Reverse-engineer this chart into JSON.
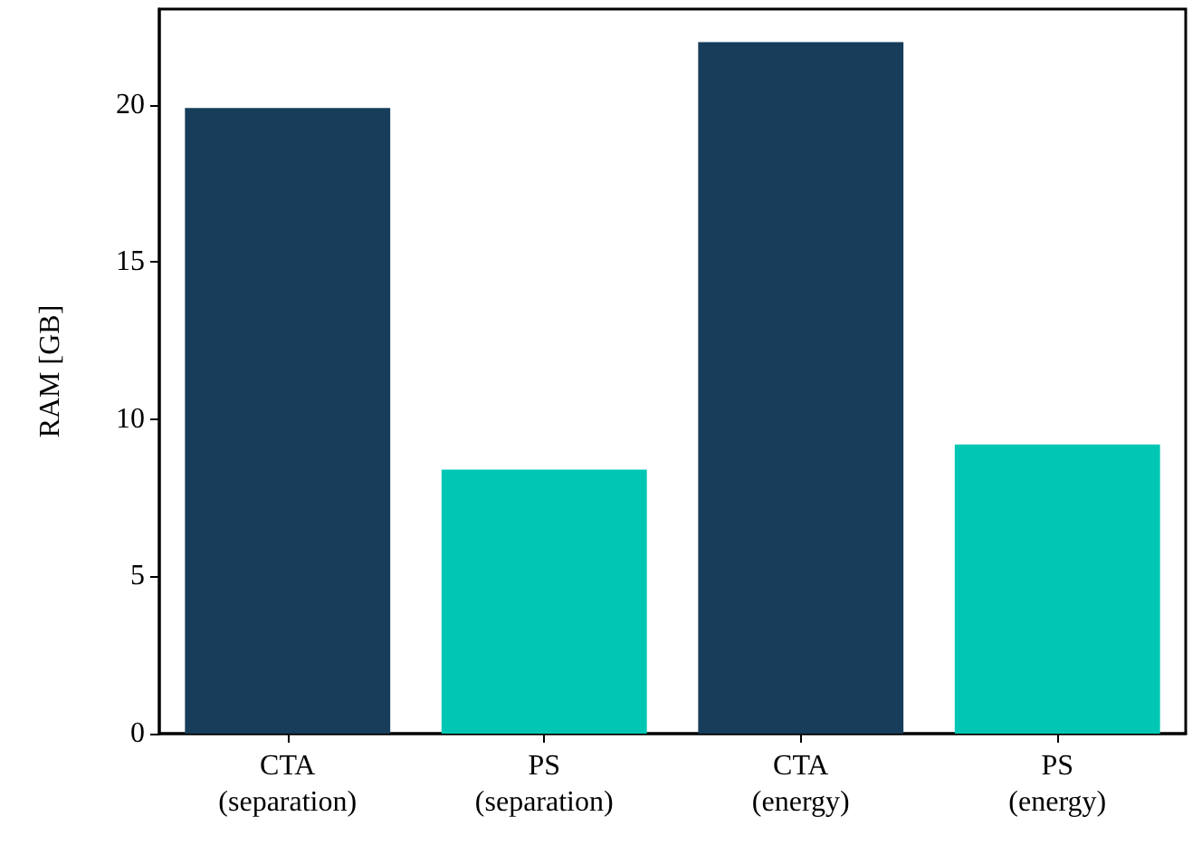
{
  "chart_data": {
    "type": "bar",
    "ylabel": "RAM [GB]",
    "categories": [
      "CTA\n(separation)",
      "PS\n(separation)",
      "CTA\n(energy)",
      "PS\n(energy)"
    ],
    "values": [
      19.9,
      8.4,
      22.0,
      9.2
    ],
    "colors": [
      "#173d5a",
      "#00c7b4",
      "#173d5a",
      "#00c7b4"
    ],
    "ylim": [
      0,
      23.05
    ],
    "yticks": [
      0,
      5,
      10,
      15,
      20
    ],
    "grid": false
  }
}
